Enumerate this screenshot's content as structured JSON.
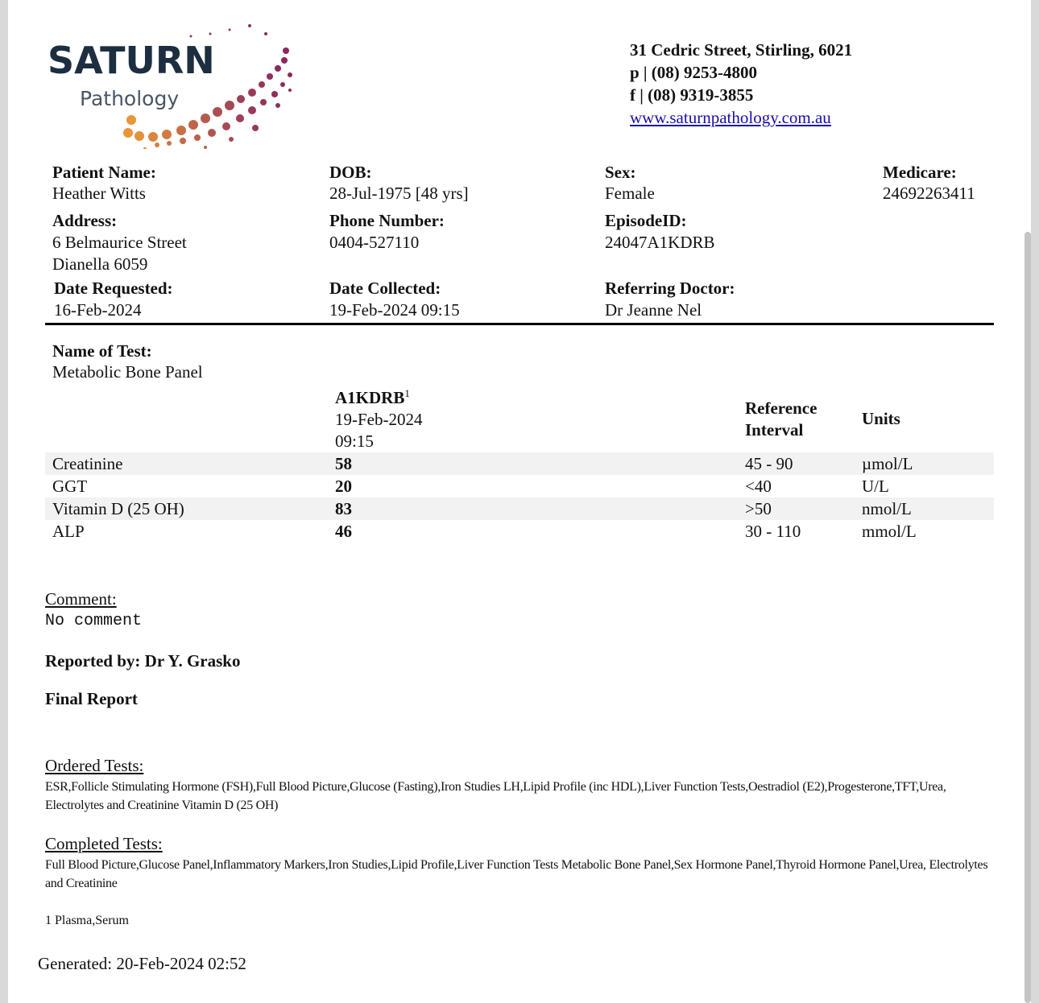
{
  "lab": {
    "logo_text": "SATURN",
    "logo_sub": "Pathology",
    "address": "31 Cedric Street, Stirling, 6021",
    "phone": "p | (08) 9253-4800",
    "fax": "f | (08) 9319-3855",
    "website": "www.saturnpathology.com.au"
  },
  "patient": {
    "name_label": "Patient Name:",
    "name": "Heather Witts",
    "dob_label": "DOB:",
    "dob": "28-Jul-1975 [48 yrs]",
    "sex_label": "Sex:",
    "sex": "Female",
    "medicare_label": "Medicare:",
    "medicare": "24692263411",
    "address_label": "Address:",
    "address_line1": "6 Belmaurice Street",
    "address_line2": "Dianella 6059",
    "phone_label": "Phone Number:",
    "phone": "0404-527110",
    "episode_label": "EpisodeID:",
    "episode": "24047A1KDRB",
    "date_requested_label": "Date Requested:",
    "date_requested": "16-Feb-2024",
    "date_collected_label": "Date Collected:",
    "date_collected": "19-Feb-2024 09:15",
    "referring_label": "Referring Doctor:",
    "referring": "Dr Jeanne Nel"
  },
  "test": {
    "name_label": "Name of Test:",
    "name": "Metabolic Bone Panel",
    "column": {
      "id": "A1KDRB",
      "sup": "1",
      "date": "19-Feb-2024",
      "time": "09:15"
    },
    "ref_header_line1": "Reference",
    "ref_header_line2": "Interval",
    "units_header": "Units",
    "rows": [
      {
        "name": "Creatinine",
        "value": "58",
        "ref": "45 - 90",
        "units": "µmol/L"
      },
      {
        "name": "GGT",
        "value": "20",
        "ref": "<40",
        "units": "U/L"
      },
      {
        "name": "Vitamin D (25 OH)",
        "value": "83",
        "ref": ">50",
        "units": "nmol/L"
      },
      {
        "name": "ALP",
        "value": "46",
        "ref": "30 - 110",
        "units": "mmol/L"
      }
    ]
  },
  "comment_label": "Comment:",
  "comment": "No comment",
  "reported_by": "Reported by: Dr Y. Grasko",
  "report_status": "Final Report",
  "ordered_label": "Ordered Tests:",
  "ordered": "ESR,Follicle Stimulating Hormone (FSH),Full Blood Picture,Glucose (Fasting),Iron Studies LH,Lipid Profile (inc HDL),Liver Function Tests,Oestradiol (E2),Progesterone,TFT,Urea, Electrolytes and Creatinine Vitamin D (25 OH)",
  "completed_label": "Completed Tests:",
  "completed": "Full Blood Picture,Glucose Panel,Inflammatory Markers,Iron Studies,Lipid Profile,Liver Function Tests Metabolic Bone Panel,Sex Hormone Panel,Thyroid Hormone Panel,Urea, Electrolytes and Creatinine",
  "footnote": "1 Plasma,Serum",
  "generated": "Generated: 20-Feb-2024 02:52",
  "colors": {
    "logo_navy": "#1c2e40",
    "logo_gray": "#4a5566",
    "logo_orange": "#e8963a",
    "logo_purple": "#8a2a5e",
    "link": "#1a0dab",
    "row_shade": "#f2f2f2"
  }
}
